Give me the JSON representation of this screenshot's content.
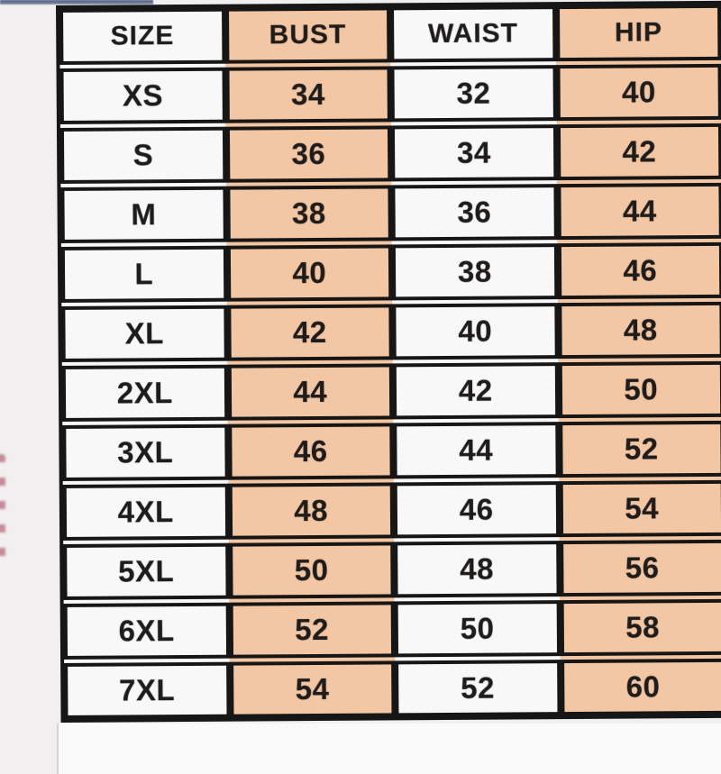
{
  "table": {
    "columns": [
      "SIZE",
      "BUST",
      "WAIST",
      "HIP"
    ],
    "rows": [
      {
        "size": "XS",
        "bust": "34",
        "waist": "32",
        "hip": "40"
      },
      {
        "size": "S",
        "bust": "36",
        "waist": "34",
        "hip": "42"
      },
      {
        "size": "M",
        "bust": "38",
        "waist": "36",
        "hip": "44"
      },
      {
        "size": "L",
        "bust": "40",
        "waist": "38",
        "hip": "46"
      },
      {
        "size": "XL",
        "bust": "42",
        "waist": "40",
        "hip": "48"
      },
      {
        "size": "2XL",
        "bust": "44",
        "waist": "42",
        "hip": "50"
      },
      {
        "size": "3XL",
        "bust": "46",
        "waist": "44",
        "hip": "52"
      },
      {
        "size": "4XL",
        "bust": "48",
        "waist": "46",
        "hip": "54"
      },
      {
        "size": "5XL",
        "bust": "50",
        "waist": "48",
        "hip": "56"
      },
      {
        "size": "6XL",
        "bust": "52",
        "waist": "50",
        "hip": "58"
      },
      {
        "size": "7XL",
        "bust": "54",
        "waist": "52",
        "hip": "60"
      }
    ]
  },
  "chart_data": {
    "type": "table",
    "columns": [
      "SIZE",
      "BUST",
      "WAIST",
      "HIP"
    ],
    "rows": [
      [
        "XS",
        34,
        32,
        40
      ],
      [
        "S",
        36,
        34,
        42
      ],
      [
        "M",
        38,
        36,
        44
      ],
      [
        "L",
        40,
        38,
        46
      ],
      [
        "XL",
        42,
        40,
        48
      ],
      [
        "2XL",
        44,
        42,
        50
      ],
      [
        "3XL",
        46,
        44,
        52
      ],
      [
        "4XL",
        48,
        46,
        54
      ],
      [
        "5XL",
        50,
        48,
        56
      ],
      [
        "6XL",
        52,
        50,
        58
      ],
      [
        "7XL",
        54,
        52,
        60
      ]
    ],
    "layout": {
      "grid": "thick-black-borders",
      "shaded_columns": [
        "BUST",
        "HIP"
      ]
    }
  },
  "colors": {
    "cell_peach": "#f5c8a4",
    "cell_white": "#fbfafa",
    "border_black": "#141414",
    "text": "#1d1b1a",
    "page_background": "#f2eff1",
    "top_strip_blue": "#6a7694",
    "watermark_red": "#a94f63"
  }
}
